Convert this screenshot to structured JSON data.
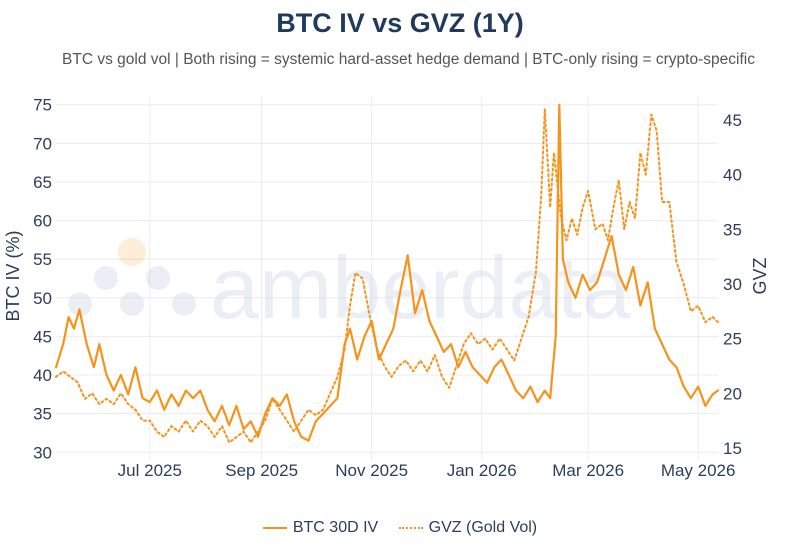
{
  "title": "BTC IV vs GVZ (1Y)",
  "subtitle": "BTC vs gold vol | Both rising = systemic hard-asset hedge demand | BTC-only rising = crypto-specific",
  "watermark": "amberdata",
  "colors": {
    "line": "#f7931a",
    "grid": "#e9ecf1",
    "text": "#2c3e5a",
    "title": "#1f3a5a"
  },
  "chart_data": {
    "type": "line",
    "xlim": [
      "2025-05-10",
      "2026-05-12"
    ],
    "x_ticks": [
      {
        "date": "2025-07-01",
        "label": "Jul 2025"
      },
      {
        "date": "2025-09-01",
        "label": "Sep 2025"
      },
      {
        "date": "2025-11-01",
        "label": "Nov 2025"
      },
      {
        "date": "2026-01-01",
        "label": "Jan 2026"
      },
      {
        "date": "2026-03-01",
        "label": "Mar 2026"
      },
      {
        "date": "2026-05-01",
        "label": "May 2026"
      }
    ],
    "y_left": {
      "label": "BTC IV (%)",
      "range": [
        29,
        76
      ],
      "ticks": [
        30,
        35,
        40,
        45,
        50,
        55,
        60,
        65,
        70,
        75
      ]
    },
    "y_right": {
      "label": "GVZ",
      "range": [
        13.9,
        47.1
      ],
      "ticks": [
        15,
        20,
        25,
        30,
        35,
        40,
        45
      ]
    },
    "grid": true,
    "legend_position": "bottom-center",
    "series": [
      {
        "name": "BTC 30D IV",
        "axis": "left",
        "style": "solid",
        "points": [
          [
            "2025-05-10",
            41
          ],
          [
            "2025-05-14",
            44
          ],
          [
            "2025-05-17",
            47.5
          ],
          [
            "2025-05-20",
            46
          ],
          [
            "2025-05-23",
            48.5
          ],
          [
            "2025-05-27",
            44
          ],
          [
            "2025-05-31",
            41
          ],
          [
            "2025-06-03",
            44
          ],
          [
            "2025-06-07",
            40
          ],
          [
            "2025-06-11",
            38
          ],
          [
            "2025-06-15",
            40
          ],
          [
            "2025-06-19",
            37.5
          ],
          [
            "2025-06-23",
            41
          ],
          [
            "2025-06-27",
            37
          ],
          [
            "2025-07-01",
            36.5
          ],
          [
            "2025-07-05",
            38
          ],
          [
            "2025-07-09",
            35.5
          ],
          [
            "2025-07-13",
            37.5
          ],
          [
            "2025-07-17",
            36
          ],
          [
            "2025-07-21",
            38
          ],
          [
            "2025-07-25",
            37
          ],
          [
            "2025-07-29",
            38
          ],
          [
            "2025-08-02",
            35.5
          ],
          [
            "2025-08-06",
            34
          ],
          [
            "2025-08-10",
            36
          ],
          [
            "2025-08-14",
            33.5
          ],
          [
            "2025-08-18",
            36
          ],
          [
            "2025-08-22",
            33
          ],
          [
            "2025-08-26",
            34
          ],
          [
            "2025-08-30",
            32
          ],
          [
            "2025-09-03",
            35
          ],
          [
            "2025-09-07",
            37
          ],
          [
            "2025-09-11",
            36
          ],
          [
            "2025-09-15",
            37.5
          ],
          [
            "2025-09-19",
            34
          ],
          [
            "2025-09-23",
            32
          ],
          [
            "2025-09-27",
            31.5
          ],
          [
            "2025-10-01",
            34
          ],
          [
            "2025-10-05",
            35
          ],
          [
            "2025-10-09",
            36
          ],
          [
            "2025-10-13",
            37
          ],
          [
            "2025-10-17",
            44
          ],
          [
            "2025-10-20",
            46
          ],
          [
            "2025-10-24",
            42
          ],
          [
            "2025-10-28",
            45
          ],
          [
            "2025-11-01",
            47
          ],
          [
            "2025-11-05",
            42
          ],
          [
            "2025-11-09",
            44
          ],
          [
            "2025-11-13",
            46
          ],
          [
            "2025-11-17",
            51
          ],
          [
            "2025-11-21",
            55.5
          ],
          [
            "2025-11-25",
            48
          ],
          [
            "2025-11-29",
            51
          ],
          [
            "2025-12-03",
            47
          ],
          [
            "2025-12-07",
            45
          ],
          [
            "2025-12-11",
            43
          ],
          [
            "2025-12-15",
            44
          ],
          [
            "2025-12-19",
            41
          ],
          [
            "2025-12-23",
            43
          ],
          [
            "2025-12-27",
            41
          ],
          [
            "2025-12-31",
            40
          ],
          [
            "2026-01-04",
            39
          ],
          [
            "2026-01-08",
            41
          ],
          [
            "2026-01-12",
            42
          ],
          [
            "2026-01-16",
            40
          ],
          [
            "2026-01-20",
            38
          ],
          [
            "2026-01-24",
            37
          ],
          [
            "2026-01-28",
            38.5
          ],
          [
            "2026-02-01",
            36.5
          ],
          [
            "2026-02-05",
            38
          ],
          [
            "2026-02-08",
            37
          ],
          [
            "2026-02-11",
            45
          ],
          [
            "2026-02-13",
            75
          ],
          [
            "2026-02-15",
            55
          ],
          [
            "2026-02-18",
            52
          ],
          [
            "2026-02-22",
            50
          ],
          [
            "2026-02-26",
            53
          ],
          [
            "2026-03-02",
            51
          ],
          [
            "2026-03-06",
            52
          ],
          [
            "2026-03-10",
            55
          ],
          [
            "2026-03-14",
            58
          ],
          [
            "2026-03-18",
            53
          ],
          [
            "2026-03-22",
            51
          ],
          [
            "2026-03-26",
            54
          ],
          [
            "2026-03-30",
            49
          ],
          [
            "2026-04-03",
            52
          ],
          [
            "2026-04-07",
            46
          ],
          [
            "2026-04-11",
            44
          ],
          [
            "2026-04-15",
            42
          ],
          [
            "2026-04-19",
            41
          ],
          [
            "2026-04-23",
            38.5
          ],
          [
            "2026-04-27",
            37
          ],
          [
            "2026-05-01",
            38.5
          ],
          [
            "2026-05-05",
            36
          ],
          [
            "2026-05-09",
            37.5
          ],
          [
            "2026-05-12",
            38
          ]
        ]
      },
      {
        "name": "GVZ (Gold Vol)",
        "axis": "right",
        "style": "dotted",
        "points": [
          [
            "2025-05-10",
            21.5
          ],
          [
            "2025-05-14",
            22
          ],
          [
            "2025-05-18",
            21.5
          ],
          [
            "2025-05-22",
            21
          ],
          [
            "2025-05-26",
            19.5
          ],
          [
            "2025-05-30",
            20
          ],
          [
            "2025-06-03",
            19
          ],
          [
            "2025-06-07",
            19.5
          ],
          [
            "2025-06-11",
            19
          ],
          [
            "2025-06-15",
            20
          ],
          [
            "2025-06-19",
            19
          ],
          [
            "2025-06-23",
            18.5
          ],
          [
            "2025-06-27",
            17.5
          ],
          [
            "2025-07-01",
            17.5
          ],
          [
            "2025-07-05",
            16.5
          ],
          [
            "2025-07-09",
            16
          ],
          [
            "2025-07-13",
            17
          ],
          [
            "2025-07-17",
            16.5
          ],
          [
            "2025-07-21",
            17.5
          ],
          [
            "2025-07-25",
            16.5
          ],
          [
            "2025-07-29",
            17.5
          ],
          [
            "2025-08-02",
            17
          ],
          [
            "2025-08-06",
            16
          ],
          [
            "2025-08-10",
            17
          ],
          [
            "2025-08-14",
            15.5
          ],
          [
            "2025-08-18",
            16
          ],
          [
            "2025-08-22",
            16.5
          ],
          [
            "2025-08-26",
            15.5
          ],
          [
            "2025-08-30",
            16.5
          ],
          [
            "2025-09-03",
            17.5
          ],
          [
            "2025-09-07",
            19.5
          ],
          [
            "2025-09-11",
            18.5
          ],
          [
            "2025-09-15",
            17.5
          ],
          [
            "2025-09-19",
            16.5
          ],
          [
            "2025-09-23",
            17.5
          ],
          [
            "2025-09-27",
            18.5
          ],
          [
            "2025-10-01",
            18
          ],
          [
            "2025-10-05",
            18.5
          ],
          [
            "2025-10-09",
            20
          ],
          [
            "2025-10-13",
            21.5
          ],
          [
            "2025-10-17",
            24
          ],
          [
            "2025-10-20",
            28
          ],
          [
            "2025-10-23",
            31
          ],
          [
            "2025-10-27",
            30.5
          ],
          [
            "2025-10-31",
            27
          ],
          [
            "2025-11-04",
            24
          ],
          [
            "2025-11-08",
            22.5
          ],
          [
            "2025-11-12",
            21.5
          ],
          [
            "2025-11-16",
            22.5
          ],
          [
            "2025-11-20",
            23
          ],
          [
            "2025-11-24",
            22
          ],
          [
            "2025-11-28",
            23
          ],
          [
            "2025-12-02",
            22
          ],
          [
            "2025-12-06",
            23.5
          ],
          [
            "2025-12-10",
            21.5
          ],
          [
            "2025-12-14",
            20.5
          ],
          [
            "2025-12-18",
            22.5
          ],
          [
            "2025-12-22",
            24.5
          ],
          [
            "2025-12-26",
            25.5
          ],
          [
            "2025-12-30",
            24.5
          ],
          [
            "2026-01-03",
            25
          ],
          [
            "2026-01-07",
            24
          ],
          [
            "2026-01-11",
            25
          ],
          [
            "2026-01-15",
            24
          ],
          [
            "2026-01-19",
            23
          ],
          [
            "2026-01-23",
            25
          ],
          [
            "2026-01-27",
            27
          ],
          [
            "2026-01-31",
            31
          ],
          [
            "2026-02-03",
            38
          ],
          [
            "2026-02-05",
            46
          ],
          [
            "2026-02-08",
            37
          ],
          [
            "2026-02-10",
            42
          ],
          [
            "2026-02-12",
            39
          ],
          [
            "2026-02-14",
            36
          ],
          [
            "2026-02-17",
            34
          ],
          [
            "2026-02-20",
            36
          ],
          [
            "2026-02-23",
            34.5
          ],
          [
            "2026-02-26",
            37
          ],
          [
            "2026-03-01",
            38.5
          ],
          [
            "2026-03-05",
            35
          ],
          [
            "2026-03-09",
            35.5
          ],
          [
            "2026-03-12",
            34
          ],
          [
            "2026-03-15",
            37
          ],
          [
            "2026-03-18",
            39.5
          ],
          [
            "2026-03-21",
            35
          ],
          [
            "2026-03-24",
            37.5
          ],
          [
            "2026-03-27",
            36
          ],
          [
            "2026-03-30",
            42
          ],
          [
            "2026-04-02",
            40
          ],
          [
            "2026-04-05",
            45.5
          ],
          [
            "2026-04-08",
            44
          ],
          [
            "2026-04-11",
            37.5
          ],
          [
            "2026-04-15",
            37.5
          ],
          [
            "2026-04-19",
            32
          ],
          [
            "2026-04-23",
            30
          ],
          [
            "2026-04-27",
            27.5
          ],
          [
            "2026-05-01",
            28
          ],
          [
            "2026-05-05",
            26.5
          ],
          [
            "2026-05-09",
            27
          ],
          [
            "2026-05-12",
            26.5
          ]
        ]
      }
    ]
  }
}
